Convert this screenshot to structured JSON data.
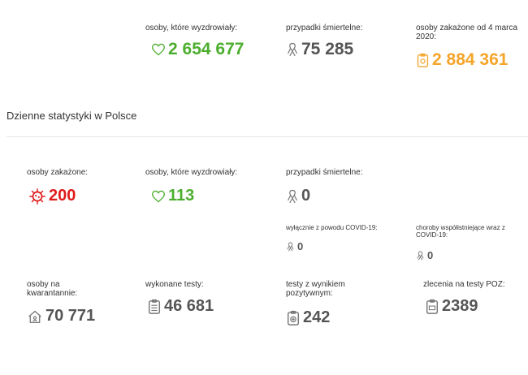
{
  "top": {
    "recovered": {
      "label": "osoby, które wyzdrowiały:",
      "value": "2 654 677",
      "icon": "heart-icon",
      "color": "#4cae2e"
    },
    "deaths": {
      "label": "przypadki śmiertelne:",
      "value": "75 285",
      "icon": "ribbon-icon",
      "color": "#555555"
    },
    "infected": {
      "label": "osoby zakażone od 4 marca 2020:",
      "value": "2 884 361",
      "icon": "clipboard-virus-icon",
      "color": "#f5a52a"
    }
  },
  "daily": {
    "title": "Dzienne statystyki w Polsce",
    "infected": {
      "label": "osoby zakażone:",
      "value": "200",
      "icon": "virus-icon",
      "color": "#e01b1b"
    },
    "recovered": {
      "label": "osoby, które wyzdrowiały:",
      "value": "113",
      "icon": "heart-icon",
      "color": "#4cae2e"
    },
    "deaths": {
      "label": "przypadki śmiertelne:",
      "value": "0",
      "icon": "ribbon-icon"
    },
    "deaths_covid_only": {
      "label": "wyłącznie z powodu COVID-19:",
      "value": "0",
      "icon": "ribbon-icon"
    },
    "deaths_comorbid": {
      "label": "choroby współistniejące wraz z COVID-19:",
      "value": "0",
      "icon": "ribbon-icon"
    },
    "quarantine": {
      "label": "osoby na kwarantannie:",
      "value": "70 771",
      "icon": "house-icon"
    },
    "tests_done": {
      "label": "wykonane testy:",
      "value": "46 681",
      "icon": "test-kit-icon"
    },
    "tests_positive": {
      "label": "testy z wynikiem pozytywnym:",
      "value": "242",
      "icon": "positive-test-icon"
    },
    "poz_orders": {
      "label": "zlecenia na testy POZ:",
      "value": "2389",
      "icon": "poz-test-icon"
    }
  }
}
